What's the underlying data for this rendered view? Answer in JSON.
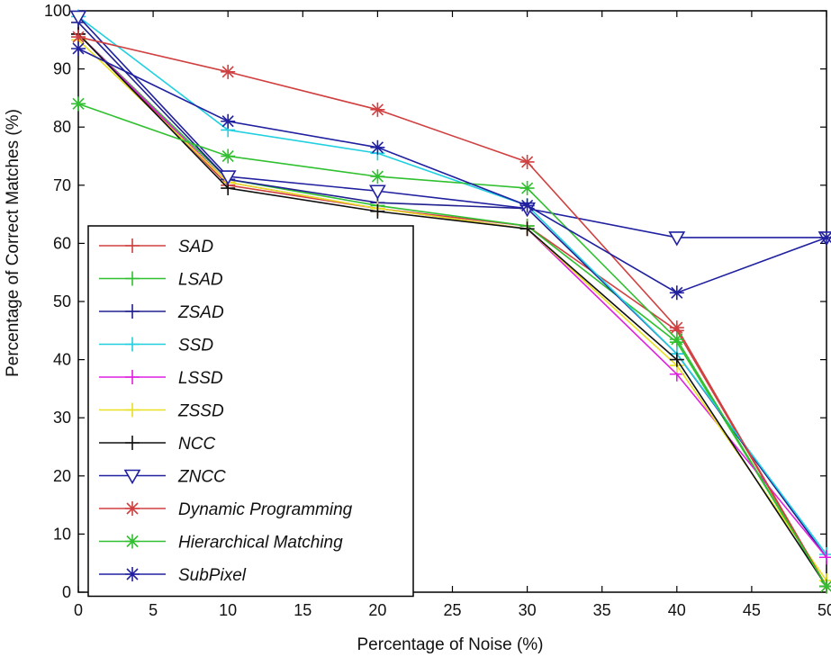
{
  "chart_data": {
    "type": "line",
    "title": "",
    "xlabel": "Percentage of Noise (%)",
    "ylabel": "Percentage of Correct Matches (%)",
    "xlim": [
      0,
      50
    ],
    "ylim": [
      0,
      100
    ],
    "xticks": [
      0,
      5,
      10,
      15,
      20,
      25,
      30,
      35,
      40,
      45,
      50
    ],
    "yticks": [
      0,
      10,
      20,
      30,
      40,
      50,
      60,
      70,
      80,
      90,
      100
    ],
    "grid": false,
    "legend_position": "bottom-left",
    "x": [
      0,
      10,
      20,
      30,
      40,
      50
    ],
    "series": [
      {
        "name": "SAD",
        "color": "#d04040",
        "marker": "plus",
        "values": [
          96,
          70,
          66,
          63,
          45,
          1
        ]
      },
      {
        "name": "LSAD",
        "color": "#30c030",
        "marker": "plus",
        "values": [
          96,
          71,
          66.5,
          63,
          43,
          1
        ]
      },
      {
        "name": "ZSAD",
        "color": "#202090",
        "marker": "plus",
        "values": [
          98,
          71,
          67,
          66,
          41,
          6
        ]
      },
      {
        "name": "SSD",
        "color": "#20d0e0",
        "marker": "plus",
        "values": [
          99,
          79.5,
          75.5,
          66.5,
          41,
          6.5
        ]
      },
      {
        "name": "LSSD",
        "color": "#e020e0",
        "marker": "plus",
        "values": [
          96,
          70.5,
          66,
          62.5,
          37.5,
          6
        ]
      },
      {
        "name": "ZSSD",
        "color": "#e8e020",
        "marker": "plus",
        "values": [
          95,
          70.5,
          66,
          62.5,
          39,
          2
        ]
      },
      {
        "name": "NCC",
        "color": "#101010",
        "marker": "plus",
        "values": [
          96,
          69.5,
          65.5,
          62.5,
          40,
          1
        ]
      },
      {
        "name": "ZNCC",
        "color": "#2020a0",
        "marker": "triangle-down",
        "values": [
          99,
          71.5,
          69,
          66,
          61,
          61
        ]
      },
      {
        "name": "Dynamic Programming",
        "color": "#d04040",
        "marker": "star",
        "values": [
          95.5,
          89.5,
          83,
          74,
          45.5,
          1
        ]
      },
      {
        "name": "Hierarchical Matching",
        "color": "#30c030",
        "marker": "star",
        "values": [
          84,
          75,
          71.5,
          69.5,
          43.5,
          1
        ]
      },
      {
        "name": "SubPixel",
        "color": "#2020a0",
        "marker": "star",
        "values": [
          93.5,
          81,
          76.5,
          66.5,
          51.5,
          61
        ]
      }
    ]
  }
}
